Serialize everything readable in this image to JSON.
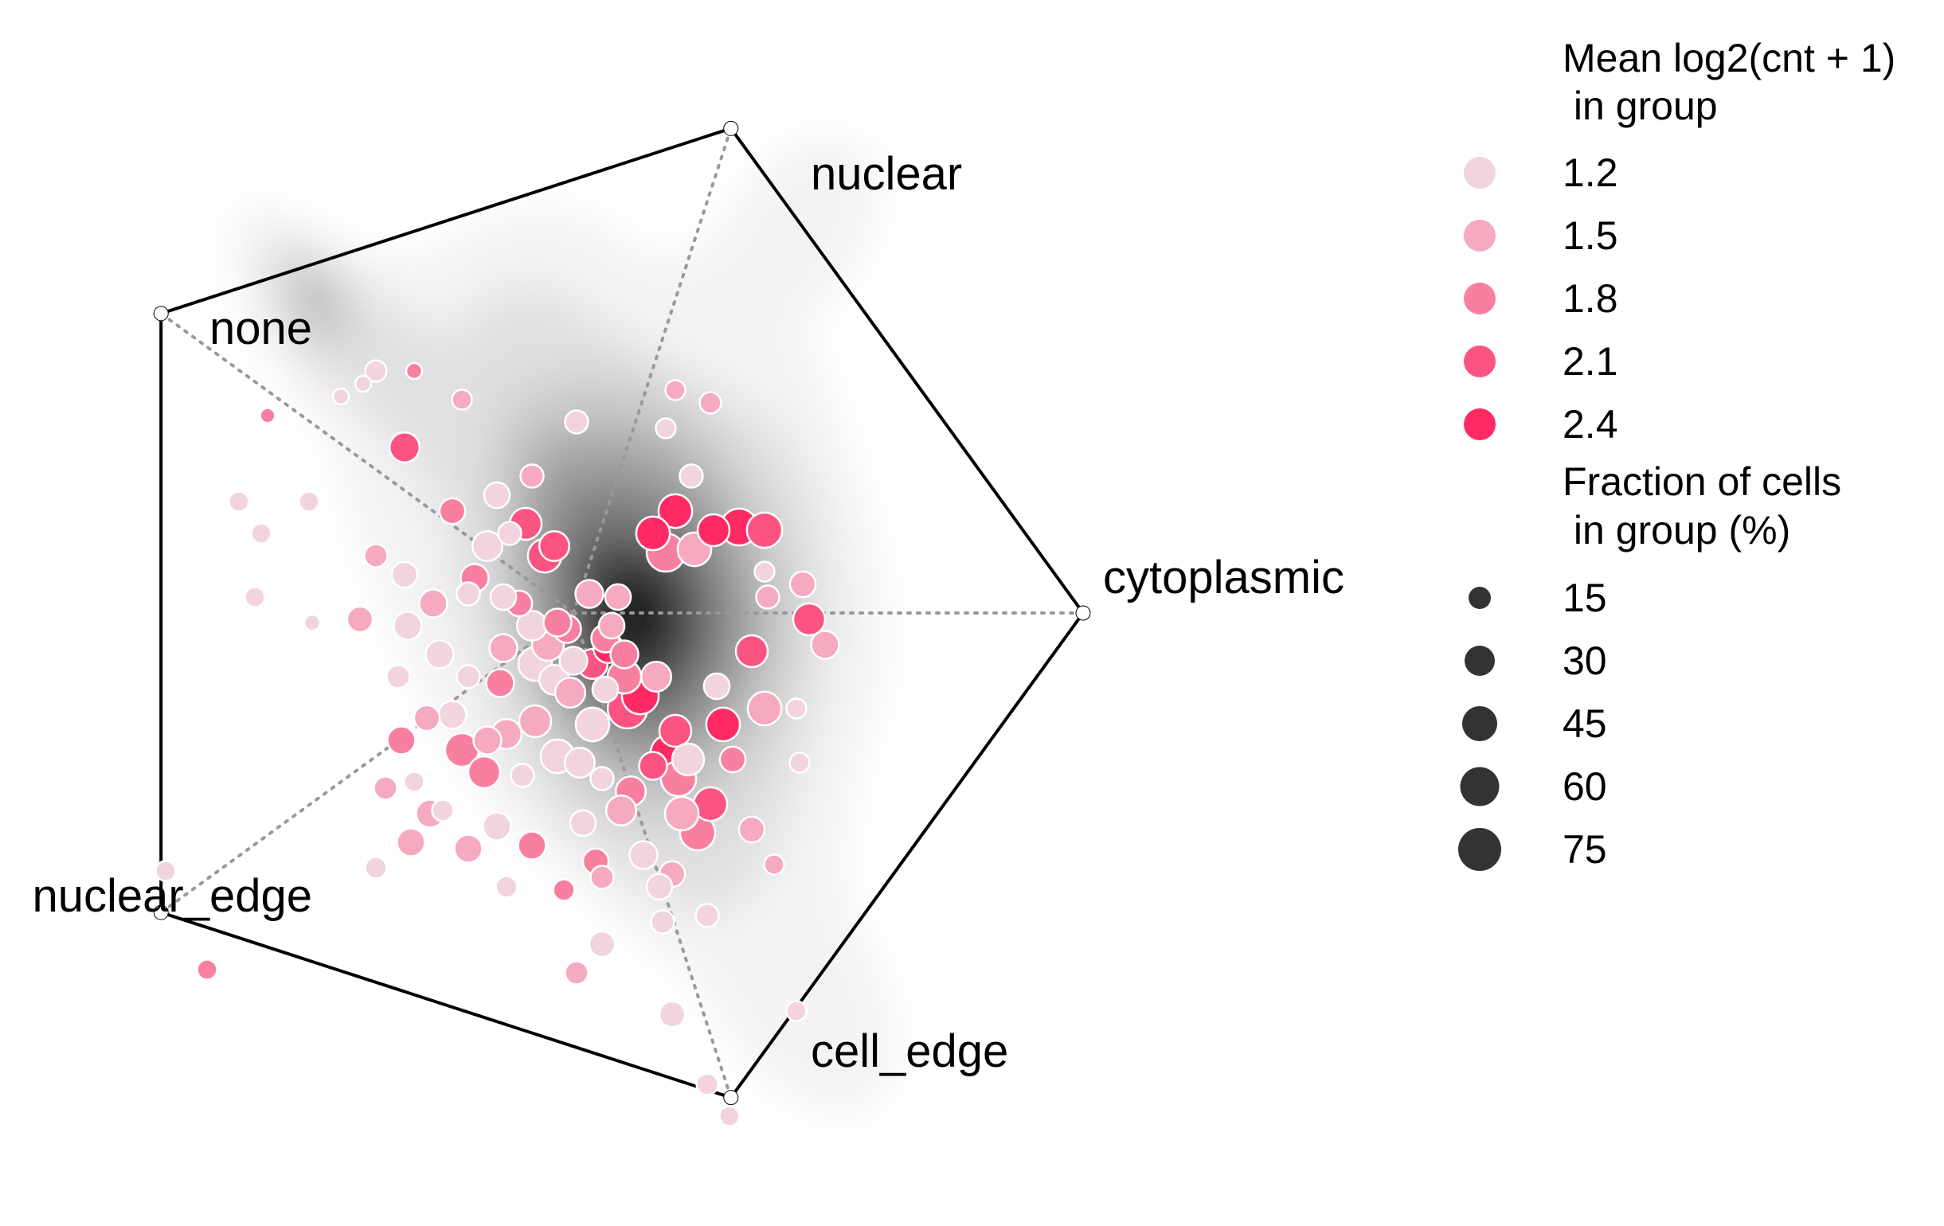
{
  "chart_data": {
    "type": "scatter",
    "subtype": "radial-pentagon-dotplot-with-density",
    "title": "",
    "axes": [
      {
        "name": "nuclear",
        "angle_deg": 72
      },
      {
        "name": "cytoplasmic",
        "angle_deg": 0
      },
      {
        "name": "cell_edge",
        "angle_deg": -72
      },
      {
        "name": "nuclear_edge",
        "angle_deg": -144
      },
      {
        "name": "none",
        "angle_deg": 144
      }
    ],
    "grid": false,
    "legend_placement": "right",
    "colors": {
      "low": "#f2d4dd",
      "high": "#ff2a64",
      "outline": "#ffffff",
      "frame": "#000000",
      "spoke": "#999999",
      "density_dark": "#111111",
      "density_light": "#f3f3f3",
      "legend_size_dot": "#333333"
    },
    "color_legend": {
      "title_lines": [
        "Mean log2(cnt + 1)",
        " in group"
      ],
      "values": [
        1.2,
        1.5,
        1.8,
        2.1,
        2.4
      ],
      "labels": [
        "1.2",
        "1.5",
        "1.8",
        "2.1",
        "2.4"
      ]
    },
    "size_legend": {
      "title_lines": [
        "Fraction of cells",
        " in group (%)"
      ],
      "values": [
        15,
        30,
        45,
        60,
        75
      ],
      "labels": [
        "15",
        "30",
        "45",
        "60",
        "75"
      ]
    },
    "points": [
      {
        "x": 0.01,
        "y": 0.6,
        "mean": 1.2,
        "frac": 15
      },
      {
        "x": -0.5,
        "y": 0.76,
        "mean": 1.8,
        "frac": 5
      },
      {
        "x": -0.66,
        "y": 0.72,
        "mean": 1.2,
        "frac": 5
      },
      {
        "x": -0.73,
        "y": 0.68,
        "mean": 1.2,
        "frac": 5
      },
      {
        "x": -0.96,
        "y": 0.62,
        "mean": 1.8,
        "frac": 4
      },
      {
        "x": -0.2,
        "y": 0.25,
        "mean": 1.2,
        "frac": 15
      },
      {
        "x": -0.06,
        "y": 0.21,
        "mean": 2.1,
        "frac": 30
      },
      {
        "x": -0.09,
        "y": 0.18,
        "mean": 2.1,
        "frac": 40
      },
      {
        "x": -0.31,
        "y": 0.11,
        "mean": 1.8,
        "frac": 25
      },
      {
        "x": -0.17,
        "y": 0.03,
        "mean": 1.8,
        "frac": 20
      },
      {
        "x": -0.13,
        "y": -0.04,
        "mean": 1.2,
        "frac": 30
      },
      {
        "x": -0.22,
        "y": -0.11,
        "mean": 1.5,
        "frac": 25
      },
      {
        "x": -0.08,
        "y": -0.1,
        "mean": 1.5,
        "frac": 35
      },
      {
        "x": -0.02,
        "y": -0.05,
        "mean": 1.8,
        "frac": 25
      },
      {
        "x": 0.1,
        "y": -0.08,
        "mean": 1.8,
        "frac": 25
      },
      {
        "x": 0.06,
        "y": -0.16,
        "mean": 2.1,
        "frac": 30
      },
      {
        "x": 0.11,
        "y": -0.11,
        "mean": 2.4,
        "frac": 30
      },
      {
        "x": 0.16,
        "y": -0.2,
        "mean": 1.8,
        "frac": 40
      },
      {
        "x": 0.21,
        "y": -0.26,
        "mean": 2.4,
        "frac": 50
      },
      {
        "x": 0.26,
        "y": -0.2,
        "mean": 1.5,
        "frac": 30
      },
      {
        "x": 0.17,
        "y": -0.3,
        "mean": 2.1,
        "frac": 60
      },
      {
        "x": 0.32,
        "y": -0.37,
        "mean": 2.1,
        "frac": 35
      },
      {
        "x": 0.3,
        "y": -0.44,
        "mean": 2.4,
        "frac": 50
      },
      {
        "x": 0.36,
        "y": -0.46,
        "mean": 1.2,
        "frac": 35
      },
      {
        "x": 0.47,
        "y": -0.35,
        "mean": 2.4,
        "frac": 40
      },
      {
        "x": 0.45,
        "y": -0.23,
        "mean": 1.2,
        "frac": 20
      },
      {
        "x": 0.33,
        "y": -0.52,
        "mean": 1.8,
        "frac": 45
      },
      {
        "x": 0.43,
        "y": -0.6,
        "mean": 2.1,
        "frac": 40
      },
      {
        "x": 0.39,
        "y": -0.69,
        "mean": 1.8,
        "frac": 45
      },
      {
        "x": 0.56,
        "y": -0.68,
        "mean": 1.5,
        "frac": 20
      },
      {
        "x": 0.18,
        "y": -0.56,
        "mean": 1.8,
        "frac": 30
      },
      {
        "x": -0.05,
        "y": -0.45,
        "mean": 1.2,
        "frac": 40
      },
      {
        "x": 0.02,
        "y": -0.47,
        "mean": 1.2,
        "frac": 30
      },
      {
        "x": 0.06,
        "y": -0.35,
        "mean": 1.2,
        "frac": 40
      },
      {
        "x": -0.12,
        "y": -0.34,
        "mean": 1.5,
        "frac": 35
      },
      {
        "x": -0.21,
        "y": -0.38,
        "mean": 1.5,
        "frac": 30
      },
      {
        "x": -0.28,
        "y": -0.5,
        "mean": 1.8,
        "frac": 35
      },
      {
        "x": -0.35,
        "y": -0.43,
        "mean": 1.8,
        "frac": 40
      },
      {
        "x": -0.24,
        "y": -0.67,
        "mean": 1.2,
        "frac": 25
      },
      {
        "x": -0.33,
        "y": -0.74,
        "mean": 1.5,
        "frac": 25
      },
      {
        "x": -0.13,
        "y": -0.73,
        "mean": 1.8,
        "frac": 25
      },
      {
        "x": 0.22,
        "y": -0.76,
        "mean": 1.2,
        "frac": 25
      },
      {
        "x": 0.31,
        "y": -0.82,
        "mean": 1.5,
        "frac": 20
      },
      {
        "x": 0.28,
        "y": -0.97,
        "mean": 1.2,
        "frac": 15
      },
      {
        "x": 0.42,
        "y": -0.95,
        "mean": 1.2,
        "frac": 15
      },
      {
        "x": 0.09,
        "y": -1.04,
        "mean": 1.2,
        "frac": 20
      },
      {
        "x": 0.01,
        "y": -1.13,
        "mean": 1.5,
        "frac": 15
      },
      {
        "x": 0.03,
        "y": -0.66,
        "mean": 1.2,
        "frac": 20
      },
      {
        "x": 0.09,
        "y": -0.83,
        "mean": 1.5,
        "frac": 15
      },
      {
        "x": 0.31,
        "y": -1.26,
        "mean": 1.2,
        "frac": 20
      },
      {
        "x": 0.42,
        "y": -1.48,
        "mean": 1.2,
        "frac": 12
      },
      {
        "x": 0.49,
        "y": -1.58,
        "mean": 1.2,
        "frac": 10
      },
      {
        "x": 0.7,
        "y": -1.25,
        "mean": 1.2,
        "frac": 10
      },
      {
        "x": 0.6,
        "y": -0.3,
        "mean": 1.5,
        "frac": 40
      },
      {
        "x": 0.56,
        "y": -0.12,
        "mean": 2.1,
        "frac": 35
      },
      {
        "x": 0.74,
        "y": -0.02,
        "mean": 2.1,
        "frac": 35
      },
      {
        "x": 0.79,
        "y": -0.1,
        "mean": 1.5,
        "frac": 25
      },
      {
        "x": 0.7,
        "y": -0.3,
        "mean": 1.2,
        "frac": 10
      },
      {
        "x": 0.71,
        "y": -0.47,
        "mean": 1.2,
        "frac": 10
      },
      {
        "x": 0.63,
        "y": -0.79,
        "mean": 1.5,
        "frac": 10
      },
      {
        "x": 0.5,
        "y": -0.46,
        "mean": 1.8,
        "frac": 20
      },
      {
        "x": 0.72,
        "y": 0.09,
        "mean": 1.5,
        "frac": 20
      },
      {
        "x": 0.61,
        "y": 0.05,
        "mean": 1.5,
        "frac": 15
      },
      {
        "x": 0.6,
        "y": 0.13,
        "mean": 1.2,
        "frac": 10
      },
      {
        "x": 0.6,
        "y": 0.26,
        "mean": 2.1,
        "frac": 45
      },
      {
        "x": 0.52,
        "y": 0.27,
        "mean": 2.4,
        "frac": 50
      },
      {
        "x": 0.44,
        "y": 0.26,
        "mean": 2.4,
        "frac": 35
      },
      {
        "x": 0.37,
        "y": 0.43,
        "mean": 1.2,
        "frac": 15
      },
      {
        "x": 0.38,
        "y": 0.2,
        "mean": 1.5,
        "frac": 40
      },
      {
        "x": 0.32,
        "y": 0.32,
        "mean": 2.4,
        "frac": 40
      },
      {
        "x": 0.29,
        "y": 0.19,
        "mean": 1.8,
        "frac": 55
      },
      {
        "x": 0.25,
        "y": 0.25,
        "mean": 2.4,
        "frac": 40
      },
      {
        "x": 0.43,
        "y": 0.66,
        "mean": 1.5,
        "frac": 12
      },
      {
        "x": 0.29,
        "y": 0.58,
        "mean": 1.2,
        "frac": 10
      },
      {
        "x": 0.32,
        "y": 0.7,
        "mean": 1.5,
        "frac": 10
      },
      {
        "x": -0.15,
        "y": 0.28,
        "mean": 2.1,
        "frac": 35
      },
      {
        "x": -0.27,
        "y": 0.21,
        "mean": 1.2,
        "frac": 30
      },
      {
        "x": -0.24,
        "y": 0.37,
        "mean": 1.2,
        "frac": 20
      },
      {
        "x": -0.38,
        "y": 0.32,
        "mean": 1.8,
        "frac": 20
      },
      {
        "x": -0.53,
        "y": 0.12,
        "mean": 1.2,
        "frac": 20
      },
      {
        "x": -0.62,
        "y": 0.18,
        "mean": 1.5,
        "frac": 15
      },
      {
        "x": -0.33,
        "y": 0.06,
        "mean": 1.2,
        "frac": 15
      },
      {
        "x": -0.22,
        "y": 0.05,
        "mean": 1.2,
        "frac": 20
      },
      {
        "x": -0.13,
        "y": 0.43,
        "mean": 1.5,
        "frac": 15
      },
      {
        "x": -0.53,
        "y": 0.52,
        "mean": 2.1,
        "frac": 30
      },
      {
        "x": -0.62,
        "y": 0.76,
        "mean": 1.2,
        "frac": 12
      },
      {
        "x": -0.83,
        "y": 0.35,
        "mean": 1.2,
        "frac": 10
      },
      {
        "x": -0.35,
        "y": 0.67,
        "mean": 1.5,
        "frac": 10
      },
      {
        "x": -0.98,
        "y": 0.25,
        "mean": 1.2,
        "frac": 10
      },
      {
        "x": -1.05,
        "y": 0.35,
        "mean": 1.2,
        "frac": 10
      },
      {
        "x": -1.0,
        "y": 0.05,
        "mean": 1.2,
        "frac": 10
      },
      {
        "x": -0.82,
        "y": -0.03,
        "mean": 1.2,
        "frac": 5
      },
      {
        "x": -0.46,
        "y": -0.33,
        "mean": 1.5,
        "frac": 20
      },
      {
        "x": -0.54,
        "y": -0.4,
        "mean": 1.8,
        "frac": 25
      },
      {
        "x": -0.67,
        "y": -0.02,
        "mean": 1.5,
        "frac": 20
      },
      {
        "x": -0.52,
        "y": -0.04,
        "mean": 1.2,
        "frac": 25
      },
      {
        "x": -0.44,
        "y": 0.03,
        "mean": 1.5,
        "frac": 25
      },
      {
        "x": -0.42,
        "y": -0.13,
        "mean": 1.2,
        "frac": 25
      },
      {
        "x": -0.55,
        "y": -0.2,
        "mean": 1.2,
        "frac": 15
      },
      {
        "x": -0.33,
        "y": -0.2,
        "mean": 1.2,
        "frac": 15
      },
      {
        "x": -0.38,
        "y": -0.32,
        "mean": 1.2,
        "frac": 25
      },
      {
        "x": -0.59,
        "y": -0.55,
        "mean": 1.5,
        "frac": 15
      },
      {
        "x": -0.5,
        "y": -0.53,
        "mean": 1.2,
        "frac": 10
      },
      {
        "x": -0.45,
        "y": -0.63,
        "mean": 1.5,
        "frac": 25
      },
      {
        "x": -0.51,
        "y": -0.72,
        "mean": 1.5,
        "frac": 25
      },
      {
        "x": -0.41,
        "y": -0.62,
        "mean": 1.2,
        "frac": 12
      },
      {
        "x": -0.06,
        "y": -0.21,
        "mean": 1.2,
        "frac": 30
      },
      {
        "x": -0.12,
        "y": -0.16,
        "mean": 1.2,
        "frac": 40
      },
      {
        "x": -0.01,
        "y": -0.25,
        "mean": 1.5,
        "frac": 30
      },
      {
        "x": -0.16,
        "y": -0.51,
        "mean": 1.2,
        "frac": 15
      },
      {
        "x": -0.27,
        "y": -0.4,
        "mean": 1.5,
        "frac": 25
      },
      {
        "x": -0.23,
        "y": -0.22,
        "mean": 1.8,
        "frac": 25
      },
      {
        "x": 0.1,
        "y": -0.24,
        "mean": 1.2,
        "frac": 20
      },
      {
        "x": 0.0,
        "y": -0.15,
        "mean": 1.2,
        "frac": 25
      },
      {
        "x": -0.05,
        "y": -0.03,
        "mean": 1.8,
        "frac": 25
      },
      {
        "x": 0.12,
        "y": -0.04,
        "mean": 1.5,
        "frac": 20
      },
      {
        "x": 0.05,
        "y": 0.06,
        "mean": 1.5,
        "frac": 25
      },
      {
        "x": 0.14,
        "y": 0.05,
        "mean": 1.5,
        "frac": 20
      },
      {
        "x": 0.16,
        "y": -0.13,
        "mean": 1.8,
        "frac": 25
      },
      {
        "x": 0.15,
        "y": -0.62,
        "mean": 1.5,
        "frac": 30
      },
      {
        "x": 0.34,
        "y": -0.63,
        "mean": 1.5,
        "frac": 40
      },
      {
        "x": 0.25,
        "y": -0.48,
        "mean": 2.1,
        "frac": 25
      },
      {
        "x": 0.07,
        "y": -0.78,
        "mean": 1.8,
        "frac": 20
      },
      {
        "x": 0.09,
        "y": -0.52,
        "mean": 1.2,
        "frac": 15
      },
      {
        "x": -0.21,
        "y": -0.86,
        "mean": 1.2,
        "frac": 12
      },
      {
        "x": -0.03,
        "y": -0.87,
        "mean": 1.8,
        "frac": 12
      },
      {
        "x": -0.62,
        "y": -0.8,
        "mean": 1.2,
        "frac": 12
      },
      {
        "x": 0.27,
        "y": -0.86,
        "mean": 1.2,
        "frac": 20
      },
      {
        "x": -1.28,
        "y": -0.81,
        "mean": 1.2,
        "frac": 10
      },
      {
        "x": -1.15,
        "y": -1.12,
        "mean": 1.8,
        "frac": 10
      }
    ]
  }
}
